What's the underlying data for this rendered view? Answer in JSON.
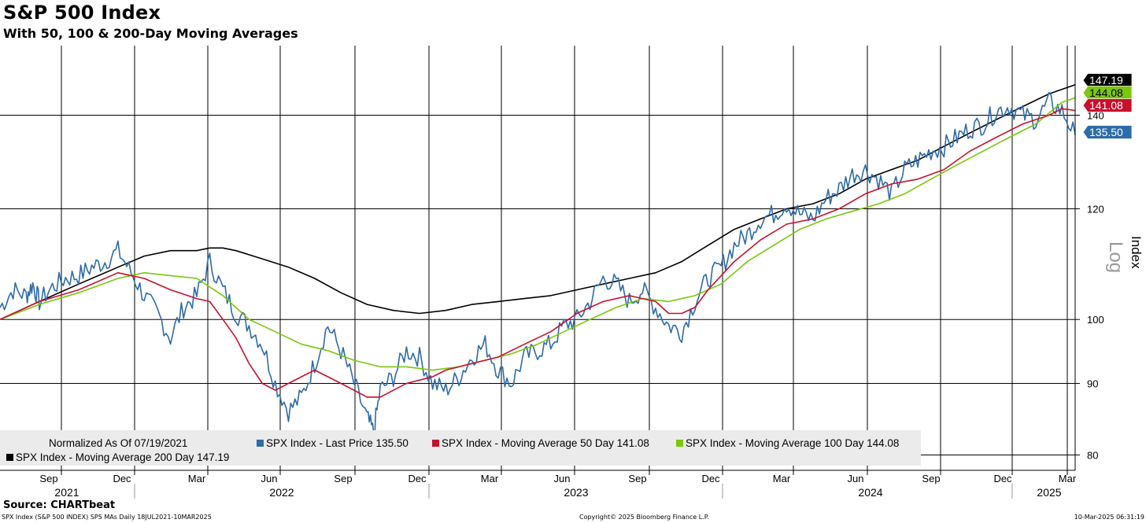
{
  "title": "S&P 500 Index",
  "subtitle": "With 50, 100 & 200-Day Moving Averages",
  "source": "Source: CHARTbeat",
  "footer": {
    "left": "SPX Index (S&P 500 INDEX) SP5 MAs  Daily 18JUL2021-10MAR2025",
    "center": "Copyright© 2025 Bloomberg Finance L.P.",
    "right": "10-Mar-2025 06:31:19"
  },
  "colors": {
    "price": "#2e6ba8",
    "ma50": "#c8102e",
    "ma100": "#7ac70c",
    "ma200": "#000000",
    "grid": "#000000",
    "legend_bg": "#ebebeb"
  },
  "chart_data": {
    "type": "line",
    "scale": "log",
    "ylabel": "Index",
    "scale_label": "Log",
    "ylim": [
      78,
      157
    ],
    "yticks": [
      80,
      90,
      100,
      120,
      140
    ],
    "ytick_labels": [
      "80",
      "90",
      "100",
      "120",
      "140"
    ],
    "x_months": [
      "Sep",
      "Dec",
      "Mar",
      "Jun",
      "Sep",
      "Dec",
      "Mar",
      "Jun",
      "Sep",
      "Dec",
      "Mar",
      "Jun",
      "Sep",
      "Dec",
      "Mar"
    ],
    "x_years": [
      "2021",
      "2022",
      "2023",
      "2024",
      "2025"
    ],
    "last_values": {
      "price": "135.50",
      "ma50": "141.08",
      "ma100": "144.08",
      "ma200": "147.19"
    },
    "legend": {
      "normalized": "Normalized As Of 07/19/2021",
      "items": [
        "SPX Index - Last Price 135.50",
        "SPX Index - Moving Average 50 Day 141.08",
        "SPX Index - Moving Average 100 Day 144.08",
        "SPX Index - Moving Average 200 Day 147.19"
      ]
    },
    "series": [
      {
        "name": "SPX Index - Last Price",
        "key": "price",
        "points": [
          [
            0,
            102
          ],
          [
            1,
            105
          ],
          [
            2,
            104
          ],
          [
            2.5,
            106
          ],
          [
            3,
            103
          ],
          [
            4,
            105.5
          ],
          [
            5,
            107
          ],
          [
            6,
            107.5
          ],
          [
            7,
            109
          ],
          [
            8,
            110
          ],
          [
            9,
            112
          ],
          [
            10,
            108
          ],
          [
            11,
            104
          ],
          [
            12,
            101
          ],
          [
            13,
            97
          ],
          [
            14,
            102
          ],
          [
            15,
            104
          ],
          [
            16,
            110
          ],
          [
            17,
            105
          ],
          [
            18,
            101
          ],
          [
            19,
            99
          ],
          [
            20,
            96
          ],
          [
            21,
            90
          ],
          [
            22,
            86
          ],
          [
            23,
            88
          ],
          [
            24,
            93
          ],
          [
            25,
            99
          ],
          [
            26,
            95
          ],
          [
            27,
            90
          ],
          [
            28,
            85
          ],
          [
            28.5,
            83
          ],
          [
            29,
            89
          ],
          [
            30,
            91
          ],
          [
            31,
            95
          ],
          [
            32,
            94
          ],
          [
            33,
            90
          ],
          [
            34,
            89
          ],
          [
            35,
            91
          ],
          [
            36,
            94
          ],
          [
            37,
            96
          ],
          [
            38,
            92
          ],
          [
            39,
            90
          ],
          [
            40,
            94
          ],
          [
            41,
            95
          ],
          [
            42,
            96
          ],
          [
            43,
            99
          ],
          [
            44,
            100
          ],
          [
            45,
            103
          ],
          [
            46,
            107
          ],
          [
            47,
            106
          ],
          [
            48,
            103
          ],
          [
            49,
            105
          ],
          [
            50,
            102
          ],
          [
            51,
            99
          ],
          [
            52,
            98
          ],
          [
            53,
            103
          ],
          [
            54,
            107
          ],
          [
            55,
            109
          ],
          [
            56,
            113
          ],
          [
            57,
            115
          ],
          [
            58,
            118
          ],
          [
            59,
            119
          ],
          [
            60,
            121
          ],
          [
            61,
            119
          ],
          [
            62,
            118
          ],
          [
            63,
            122
          ],
          [
            64,
            124
          ],
          [
            65,
            127
          ],
          [
            66,
            128
          ],
          [
            67,
            126
          ],
          [
            68,
            123
          ],
          [
            69,
            128
          ],
          [
            70,
            130
          ],
          [
            71,
            132
          ],
          [
            72,
            133
          ],
          [
            73,
            135
          ],
          [
            74,
            137
          ],
          [
            75,
            138
          ],
          [
            76,
            141
          ],
          [
            77,
            142
          ],
          [
            78,
            140
          ],
          [
            79,
            139
          ],
          [
            80,
            143
          ],
          [
            81,
            141
          ],
          [
            82,
            135.5
          ]
        ]
      },
      {
        "name": "SPX Index - Moving Average 50 Day",
        "key": "ma50",
        "points": [
          [
            0,
            100
          ],
          [
            3,
            103
          ],
          [
            6,
            105
          ],
          [
            9,
            108
          ],
          [
            11,
            107
          ],
          [
            13,
            105
          ],
          [
            15,
            103.5
          ],
          [
            16,
            103
          ],
          [
            17,
            100
          ],
          [
            18,
            97
          ],
          [
            19,
            93
          ],
          [
            20,
            90
          ],
          [
            21,
            89
          ],
          [
            22,
            90
          ],
          [
            23,
            91
          ],
          [
            24,
            92
          ],
          [
            25,
            91
          ],
          [
            26,
            90
          ],
          [
            27,
            89
          ],
          [
            28,
            88
          ],
          [
            29,
            88
          ],
          [
            30,
            89
          ],
          [
            31,
            90
          ],
          [
            32,
            90.5
          ],
          [
            33,
            91
          ],
          [
            34,
            92
          ],
          [
            36,
            93
          ],
          [
            38,
            94
          ],
          [
            40,
            96
          ],
          [
            42,
            98
          ],
          [
            44,
            101
          ],
          [
            46,
            103
          ],
          [
            48,
            104
          ],
          [
            50,
            103
          ],
          [
            51,
            101
          ],
          [
            52,
            101
          ],
          [
            53,
            102
          ],
          [
            54,
            105
          ],
          [
            56,
            110
          ],
          [
            58,
            114
          ],
          [
            60,
            117
          ],
          [
            62,
            118
          ],
          [
            64,
            120
          ],
          [
            66,
            123
          ],
          [
            68,
            125
          ],
          [
            70,
            126
          ],
          [
            72,
            128
          ],
          [
            74,
            132
          ],
          [
            76,
            135
          ],
          [
            78,
            138
          ],
          [
            80,
            140
          ],
          [
            81,
            141.5
          ],
          [
            82,
            141.08
          ]
        ]
      },
      {
        "name": "SPX Index - Moving Average 100 Day",
        "key": "ma100",
        "points": [
          [
            0,
            100
          ],
          [
            3,
            102.5
          ],
          [
            6,
            104.5
          ],
          [
            9,
            107
          ],
          [
            11,
            108
          ],
          [
            13,
            107.5
          ],
          [
            15,
            107
          ],
          [
            17,
            104
          ],
          [
            19,
            100
          ],
          [
            21,
            98
          ],
          [
            23,
            96
          ],
          [
            25,
            95
          ],
          [
            27,
            93.5
          ],
          [
            29,
            92.5
          ],
          [
            31,
            92.5
          ],
          [
            33,
            92
          ],
          [
            35,
            92.5
          ],
          [
            37,
            93.5
          ],
          [
            39,
            94.5
          ],
          [
            41,
            96
          ],
          [
            43,
            98
          ],
          [
            45,
            100
          ],
          [
            47,
            102
          ],
          [
            49,
            103.5
          ],
          [
            51,
            103
          ],
          [
            53,
            104
          ],
          [
            55,
            106
          ],
          [
            57,
            110
          ],
          [
            59,
            113
          ],
          [
            61,
            116
          ],
          [
            63,
            118
          ],
          [
            65,
            119.5
          ],
          [
            67,
            121
          ],
          [
            69,
            123
          ],
          [
            71,
            126
          ],
          [
            73,
            129
          ],
          [
            75,
            132
          ],
          [
            77,
            135
          ],
          [
            79,
            138
          ],
          [
            81,
            143
          ],
          [
            82,
            144.08
          ]
        ]
      },
      {
        "name": "SPX Index - Moving Average 200 Day",
        "key": "ma200",
        "points": [
          [
            0,
            100
          ],
          [
            3,
            103
          ],
          [
            6,
            106
          ],
          [
            9,
            109
          ],
          [
            11,
            111
          ],
          [
            13,
            112
          ],
          [
            15,
            112
          ],
          [
            16,
            112.5
          ],
          [
            17,
            112.5
          ],
          [
            18,
            112
          ],
          [
            20,
            110.5
          ],
          [
            22,
            109
          ],
          [
            24,
            107
          ],
          [
            26,
            104.5
          ],
          [
            28,
            102.5
          ],
          [
            30,
            101.5
          ],
          [
            32,
            101
          ],
          [
            34,
            101.5
          ],
          [
            36,
            102.5
          ],
          [
            38,
            103
          ],
          [
            40,
            103.5
          ],
          [
            42,
            104
          ],
          [
            44,
            105
          ],
          [
            46,
            106
          ],
          [
            48,
            107
          ],
          [
            50,
            108
          ],
          [
            52,
            110
          ],
          [
            54,
            113
          ],
          [
            56,
            116
          ],
          [
            58,
            118
          ],
          [
            60,
            120
          ],
          [
            62,
            121
          ],
          [
            64,
            123
          ],
          [
            66,
            126
          ],
          [
            68,
            128
          ],
          [
            70,
            130
          ],
          [
            72,
            133
          ],
          [
            74,
            136
          ],
          [
            76,
            139
          ],
          [
            78,
            142
          ],
          [
            80,
            145
          ],
          [
            82,
            147.19
          ]
        ]
      }
    ]
  }
}
